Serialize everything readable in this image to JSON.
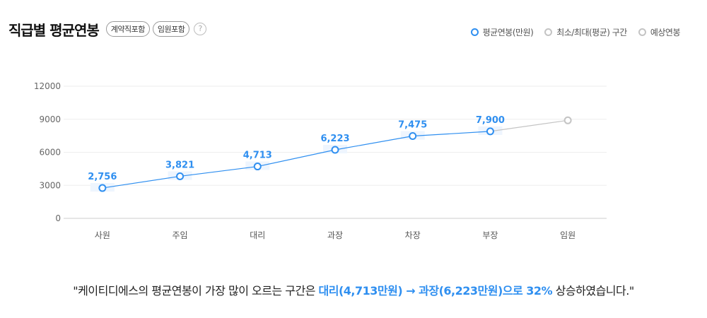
{
  "header": {
    "title": "직급별 평균연봉",
    "badges": [
      "계약직포함",
      "임원포함"
    ],
    "help_label": "?"
  },
  "legend": [
    {
      "label": "평균연봉(만원)",
      "color": "#2f8ff0"
    },
    {
      "label": "최소/최대(평균) 구간",
      "color": "#c4c4c4"
    },
    {
      "label": "예상연봉",
      "color": "#c4c4c4"
    }
  ],
  "chart_data": {
    "type": "line",
    "categories": [
      "사원",
      "주임",
      "대리",
      "과장",
      "차장",
      "부장",
      "임원"
    ],
    "series": [
      {
        "name": "평균연봉(만원)",
        "values": [
          2756,
          3821,
          4713,
          6223,
          7475,
          7900,
          null
        ],
        "labels": [
          "2,756",
          "3,821",
          "4,713",
          "6,223",
          "7,475",
          "7,900",
          null
        ],
        "color": "#2f8ff0"
      },
      {
        "name": "예상연봉",
        "values": [
          null,
          null,
          null,
          null,
          null,
          7900,
          8900
        ],
        "color": "#c4c4c4"
      }
    ],
    "yticks": [
      "12000",
      "9000",
      "6000",
      "3000",
      "0"
    ],
    "ylim": [
      0,
      12000
    ],
    "grid": true
  },
  "summary": {
    "prefix": "\"케이티디에스의 평균연봉이 가장 많이 오르는 구간은 ",
    "highlight": "대리(4,713만원) → 과장(6,223만원)으로 32%",
    "suffix": " 상승하였습니다.\""
  }
}
